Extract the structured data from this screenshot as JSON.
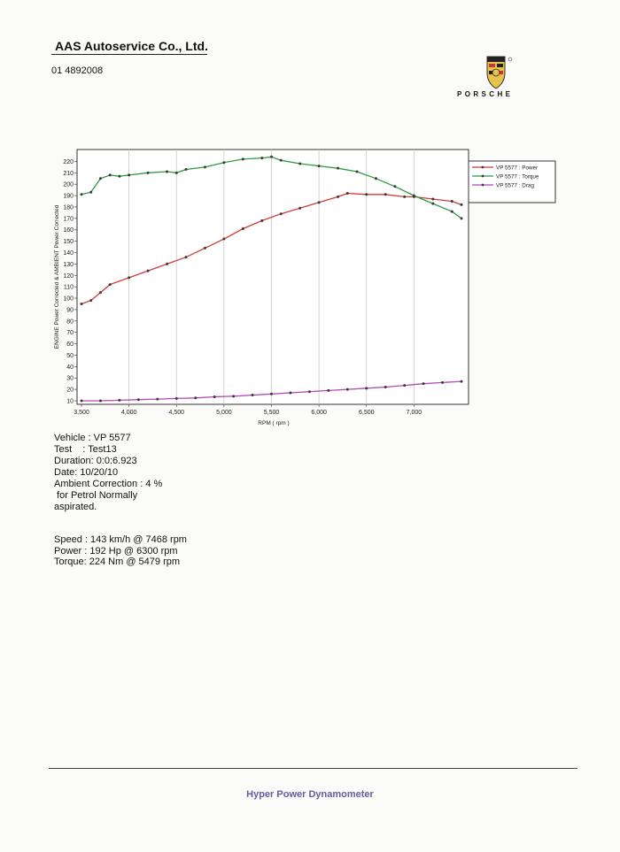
{
  "header": {
    "company": "AAS Autoservice Co., Ltd.",
    "phone": "01 4892008",
    "brand": "PORSCHE"
  },
  "info": {
    "vehicle": "Vehicle : VP 5577",
    "test": "Test    : Test13",
    "duration": "Duration: 0:0:6.923",
    "date": "Date: 10/20/10",
    "ambient": "Ambient Correction : 4 %",
    "for_petrol": " for Petrol Normally",
    "aspirated": "aspirated."
  },
  "stats": {
    "speed": "Speed : 143 km/h @ 7468 rpm",
    "power": "Power : 192 Hp @ 6300 rpm",
    "torque": "Torque: 224 Nm @ 5479 rpm"
  },
  "footer": {
    "title": "Hyper Power Dynamometer"
  },
  "colors": {
    "power": "#d23a3a",
    "torque": "#2f9a3e",
    "drag": "#b348b8",
    "footer": "#6a5a9e"
  },
  "chart_data": {
    "type": "line",
    "xlabel": "RPM ( rpm )",
    "ylabel": "ENGINE Power Corrected & AMBIENT Power Corrected",
    "xlim": [
      3500,
      7500
    ],
    "ylim": [
      10,
      225
    ],
    "x_ticks": [
      3500,
      4000,
      4500,
      5000,
      5500,
      6000,
      6500,
      7000
    ],
    "x_tick_labels": [
      "3,500",
      "4,000",
      "4,500",
      "5,000",
      "5,500",
      "6,000",
      "6,500",
      "7,000"
    ],
    "y_ticks": [
      10,
      20,
      30,
      40,
      50,
      60,
      70,
      80,
      90,
      100,
      110,
      120,
      130,
      140,
      150,
      160,
      170,
      180,
      190,
      200,
      210,
      220
    ],
    "grid": "vertical",
    "legend_position": "right",
    "series": [
      {
        "name": "VP 5577 : Power",
        "key": "power",
        "x": [
          3500,
          3600,
          3700,
          3800,
          4000,
          4200,
          4400,
          4600,
          4800,
          5000,
          5200,
          5400,
          5600,
          5800,
          6000,
          6200,
          6300,
          6500,
          6700,
          6900,
          7000,
          7200,
          7400,
          7500
        ],
        "y": [
          95,
          98,
          105,
          112,
          118,
          124,
          130,
          136,
          144,
          152,
          161,
          168,
          174,
          179,
          184,
          189,
          192,
          191,
          191,
          189,
          189,
          187,
          185,
          182
        ]
      },
      {
        "name": "VP 5577 : Torque",
        "key": "torque",
        "x": [
          3500,
          3600,
          3700,
          3800,
          3900,
          4000,
          4200,
          4400,
          4500,
          4600,
          4800,
          5000,
          5200,
          5400,
          5500,
          5600,
          5800,
          6000,
          6200,
          6400,
          6600,
          6800,
          7000,
          7200,
          7400,
          7500
        ],
        "y": [
          191,
          193,
          205,
          208,
          207,
          208,
          210,
          211,
          210,
          213,
          215,
          219,
          222,
          223,
          224,
          221,
          218,
          216,
          214,
          211,
          205,
          198,
          190,
          183,
          176,
          170
        ]
      },
      {
        "name": "VP 5577 : Drag",
        "key": "drag",
        "x": [
          3500,
          3700,
          3900,
          4100,
          4300,
          4500,
          4700,
          4900,
          5100,
          5300,
          5500,
          5700,
          5900,
          6100,
          6300,
          6500,
          6700,
          6900,
          7100,
          7300,
          7500
        ],
        "y": [
          10,
          10,
          10.5,
          11,
          11.5,
          12,
          12.5,
          13.5,
          14,
          15,
          16,
          17,
          18,
          19,
          20,
          21,
          22,
          23.5,
          25,
          26,
          27
        ]
      }
    ]
  }
}
